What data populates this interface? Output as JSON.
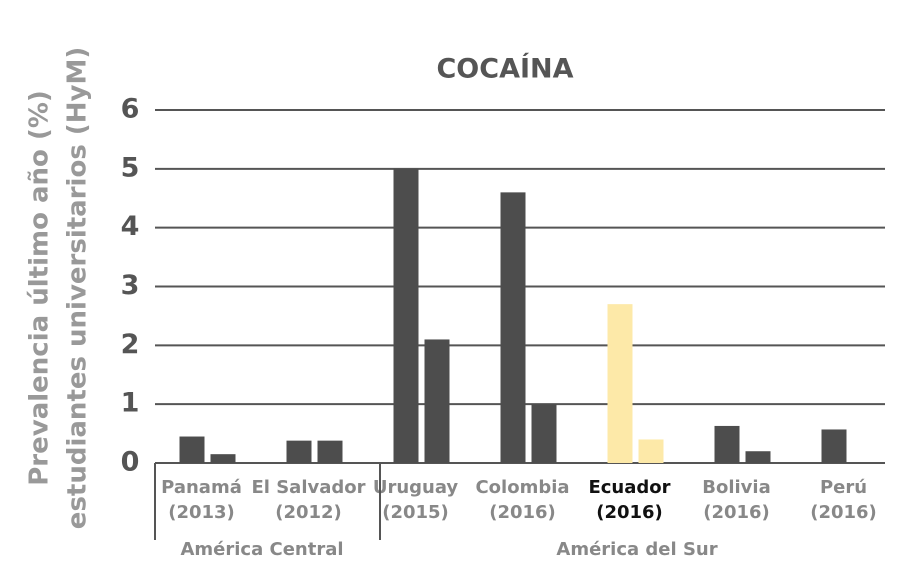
{
  "chart_data": {
    "type": "bar",
    "title": "COCAÍNA",
    "y_label": [
      "Prevalencia último año (%)",
      "estudiantes universitarios (HyM)"
    ],
    "categories": [
      [
        "Panamá",
        "(2013)"
      ],
      [
        "El Salvador",
        "(2012)"
      ],
      [
        "Uruguay",
        "(2015)"
      ],
      [
        "Colombia",
        "(2016)"
      ],
      [
        "Ecuador",
        "(2016)"
      ],
      [
        "Bolivia",
        "(2016)"
      ],
      [
        "Perú",
        "(2016)"
      ]
    ],
    "label_colors": [
      "#888888",
      "#888888",
      "#888888",
      "#888888",
      "#111111",
      "#888888",
      "#888888"
    ],
    "series": [
      {
        "values": [
          0.45,
          0.38,
          5.0,
          4.6,
          2.7,
          0.63,
          0.57
        ],
        "colors": [
          "#4d4d4d",
          "#4d4d4d",
          "#4d4d4d",
          "#4d4d4d",
          "#fde9a8",
          "#4d4d4d",
          "#4d4d4d"
        ]
      },
      {
        "values": [
          0.15,
          0.38,
          2.1,
          1.0,
          0.4,
          0.2,
          null
        ],
        "colors": [
          "#4d4d4d",
          "#4d4d4d",
          "#4d4d4d",
          "#4d4d4d",
          "#fde9a8",
          "#4d4d4d",
          "#4d4d4d"
        ]
      }
    ],
    "groups": [
      {
        "label": "América Central",
        "size": 2
      },
      {
        "label": "América del Sur",
        "size": 5
      }
    ],
    "ylim": [
      0,
      6
    ],
    "yticks": [
      0,
      1,
      2,
      3,
      4,
      5,
      6
    ],
    "grid": true
  }
}
